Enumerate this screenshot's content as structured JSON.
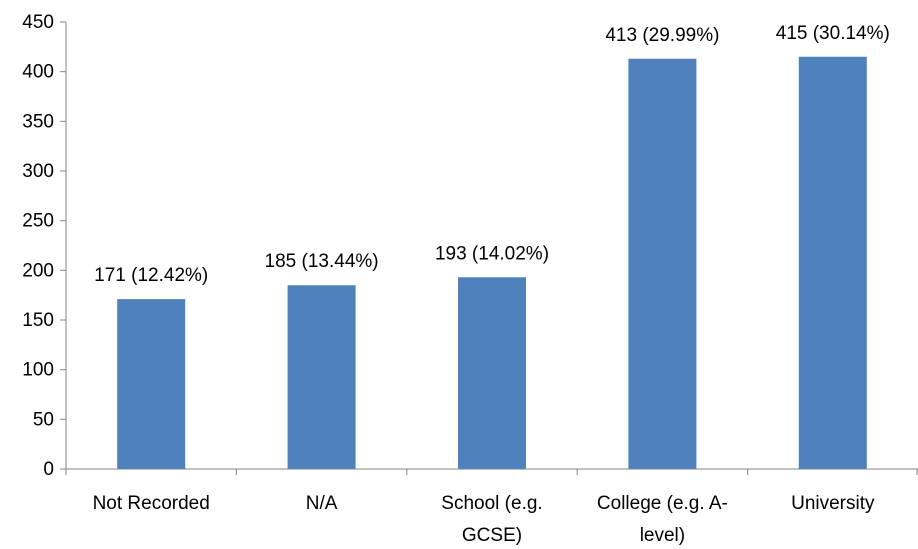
{
  "chart_data": {
    "type": "bar",
    "categories": [
      [
        "Not Recorded"
      ],
      [
        "N/A"
      ],
      [
        "School (e.g.",
        "GCSE)"
      ],
      [
        "College (e.g. A-",
        "level)"
      ],
      [
        "University"
      ]
    ],
    "values": [
      171,
      185,
      193,
      413,
      415
    ],
    "data_labels": [
      "171 (12.42%)",
      "185 (13.44%)",
      "193 (14.02%)",
      "413 (29.99%)",
      "415 (30.14%)"
    ],
    "yticks": [
      0,
      50,
      100,
      150,
      200,
      250,
      300,
      350,
      400,
      450
    ],
    "ylim": [
      0,
      450
    ],
    "grid": false,
    "legend": "none",
    "bar_color": "#4F81BD",
    "axis_color": "#868686",
    "title": "",
    "xlabel": "",
    "ylabel": ""
  }
}
